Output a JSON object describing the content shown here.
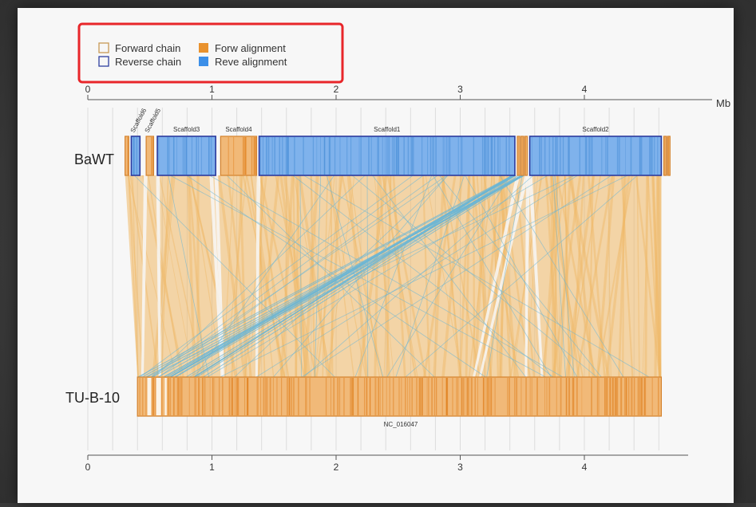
{
  "legend": {
    "items": [
      {
        "label": "Forward chain",
        "kind": "outline",
        "color": "#c89a55"
      },
      {
        "label": "Forw alignment",
        "kind": "filled",
        "color": "#e9922e"
      },
      {
        "label": "Reverse chain",
        "kind": "outline",
        "color": "#2e3fa0"
      },
      {
        "label": "Reve alignment",
        "kind": "filled",
        "color": "#3c8fe8"
      }
    ],
    "highlight_color": "#e8262a"
  },
  "axis": {
    "unit": "Mb",
    "ticks": [
      "0",
      "1",
      "2",
      "3",
      "4"
    ],
    "range_mb": [
      0,
      4.6
    ]
  },
  "genomes": {
    "top": {
      "label": "BaWT",
      "scaffolds": [
        {
          "name": "",
          "start": 0.3,
          "end": 0.33,
          "strand": "forward"
        },
        {
          "name": "Scaffold6",
          "start": 0.35,
          "end": 0.42,
          "strand": "reverse"
        },
        {
          "name": "Scaffold5",
          "start": 0.47,
          "end": 0.53,
          "strand": "forward"
        },
        {
          "name": "Scaffold3",
          "start": 0.56,
          "end": 1.03,
          "strand": "reverse"
        },
        {
          "name": "Scaffold4",
          "start": 1.07,
          "end": 1.36,
          "strand": "forward"
        },
        {
          "name": "Scaffold1",
          "start": 1.38,
          "end": 3.44,
          "strand": "reverse"
        },
        {
          "name": "",
          "start": 3.46,
          "end": 3.48,
          "strand": "forward"
        },
        {
          "name": "",
          "start": 3.49,
          "end": 3.51,
          "strand": "forward"
        },
        {
          "name": "",
          "start": 3.52,
          "end": 3.54,
          "strand": "forward"
        },
        {
          "name": "Scaffold2",
          "start": 3.56,
          "end": 4.62,
          "strand": "reverse"
        },
        {
          "name": "",
          "start": 4.64,
          "end": 4.66,
          "strand": "forward"
        },
        {
          "name": "",
          "start": 4.67,
          "end": 4.69,
          "strand": "forward"
        }
      ]
    },
    "bottom": {
      "label": "TU-B-10",
      "sequence_name": "NC_016047",
      "start": 0.4,
      "end": 4.62
    }
  },
  "colors": {
    "forward_fill": "#f1b978",
    "forward_border": "#d4812c",
    "reverse_fill": "#7fb2ec",
    "reverse_border": "#2b3a9e",
    "forward_link": "#f0b865",
    "reverse_link": "#6ab6d6",
    "stripe_forward": "#e07f1c",
    "stripe_reverse": "#4a8fd8"
  }
}
